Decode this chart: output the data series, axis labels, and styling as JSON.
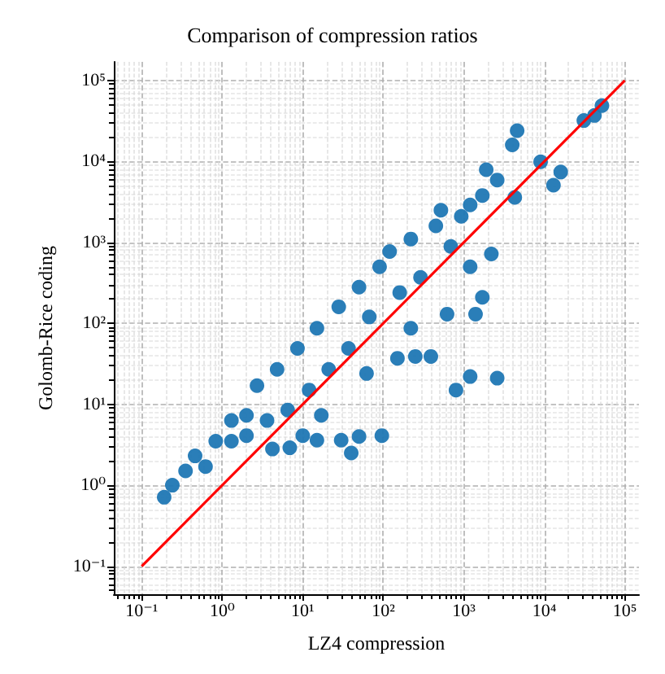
{
  "chart_data": {
    "type": "scatter",
    "title": "Comparison of compression ratios",
    "xlabel": "LZ4 compression",
    "ylabel": "Golomb-Rice coding",
    "log": "xy",
    "grid": true,
    "marker": "circle",
    "xlim": [
      0.045,
      150000
    ],
    "ylim": [
      0.045,
      170000
    ],
    "xticks": [
      {
        "value": 0.1,
        "label": "10⁻¹"
      },
      {
        "value": 1,
        "label": "10⁰"
      },
      {
        "value": 10,
        "label": "10¹"
      },
      {
        "value": 100,
        "label": "10²"
      },
      {
        "value": 1000,
        "label": "10³"
      },
      {
        "value": 10000,
        "label": "10⁴"
      },
      {
        "value": 100000,
        "label": "10⁵"
      }
    ],
    "yticks": [
      {
        "value": 0.1,
        "label": "10⁻¹"
      },
      {
        "value": 1,
        "label": "10⁰"
      },
      {
        "value": 10,
        "label": "10¹"
      },
      {
        "value": 100,
        "label": "10²"
      },
      {
        "value": 1000,
        "label": "10³"
      },
      {
        "value": 10000,
        "label": "10⁴"
      },
      {
        "value": 100000,
        "label": "10⁵"
      }
    ],
    "series": [
      {
        "color": "#1f77b4",
        "x": [
          0.19,
          0.24,
          0.35,
          0.46,
          0.62,
          0.83,
          1.3,
          1.3,
          2.0,
          2.7,
          3.6,
          4.8,
          6.5,
          8.6,
          12,
          15,
          21,
          28,
          37,
          50,
          67,
          90,
          120,
          160,
          220,
          290,
          450,
          520,
          690,
          930,
          1200,
          1900,
          1700,
          2600,
          220,
          4600,
          4000,
          9000,
          13000,
          16000,
          4300,
          2200,
          1200,
          1700,
          1400,
          620,
          390,
          250,
          150,
          62,
          800,
          1200,
          2600,
          4.2,
          6.9,
          15,
          30,
          40,
          50,
          96,
          10,
          17,
          42000,
          52000,
          31000,
          2.0
        ],
        "values": [
          0.71,
          1.0,
          1.5,
          2.3,
          1.7,
          3.5,
          6.3,
          3.5,
          7.3,
          17,
          6.3,
          27,
          8.5,
          49,
          15,
          87,
          27,
          160,
          49,
          280,
          120,
          500,
          770,
          240,
          1100,
          370,
          1600,
          2500,
          890,
          2100,
          2900,
          7900,
          3800,
          5900,
          87,
          24000,
          16000,
          9900,
          5100,
          7400,
          3600,
          720,
          500,
          210,
          130,
          130,
          39,
          39,
          37,
          24,
          15,
          22,
          21,
          2.8,
          2.9,
          3.6,
          3.6,
          2.5,
          4.0,
          4.1,
          4.1,
          7.3,
          37000,
          49000,
          32000,
          4.1
        ]
      },
      {
        "type": "line",
        "marker": "none",
        "color": "#ff0000",
        "x": [
          0.1,
          100000
        ],
        "values": [
          0.1,
          100000
        ]
      }
    ]
  }
}
